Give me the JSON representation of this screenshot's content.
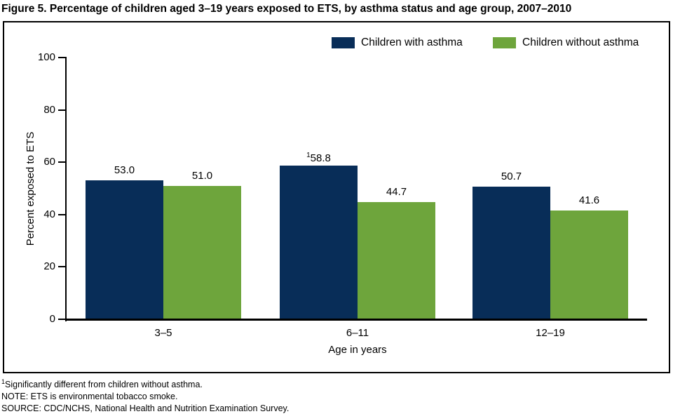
{
  "chart_data": {
    "type": "bar",
    "title": "Figure 5. Percentage of children aged 3–19 years exposed to ETS, by asthma status and age group, 2007–2010",
    "categories": [
      "3–5",
      "6–11",
      "12–19"
    ],
    "series": [
      {
        "name": "Children with asthma",
        "color": "#082d58",
        "values": [
          53.0,
          58.8,
          50.7
        ],
        "labels": [
          "53.0",
          "58.8",
          "50.7"
        ],
        "label_markers": [
          "",
          "1",
          ""
        ]
      },
      {
        "name": "Children without asthma",
        "color": "#6ea53c",
        "values": [
          51.0,
          44.7,
          41.6
        ],
        "labels": [
          "51.0",
          "44.7",
          "41.6"
        ],
        "label_markers": [
          "",
          "",
          ""
        ]
      }
    ],
    "xlabel": "Age in years",
    "ylabel": "Percent exposed to ETS",
    "ylim": [
      0,
      100
    ],
    "yticks": [
      0,
      20,
      40,
      60,
      80,
      100
    ],
    "grid": false,
    "legend_position": "top-right-inside"
  },
  "legend": {
    "items": [
      {
        "label": "Children with asthma",
        "color": "#082d58"
      },
      {
        "label": "Children without asthma",
        "color": "#6ea53c"
      }
    ]
  },
  "footnotes": {
    "line1_marker": "1",
    "line1": "Significantly different from children without asthma.",
    "line2": "NOTE: ETS is environmental tobacco smoke.",
    "line3": "SOURCE: CDC/NCHS, National Health and Nutrition Examination Survey."
  }
}
